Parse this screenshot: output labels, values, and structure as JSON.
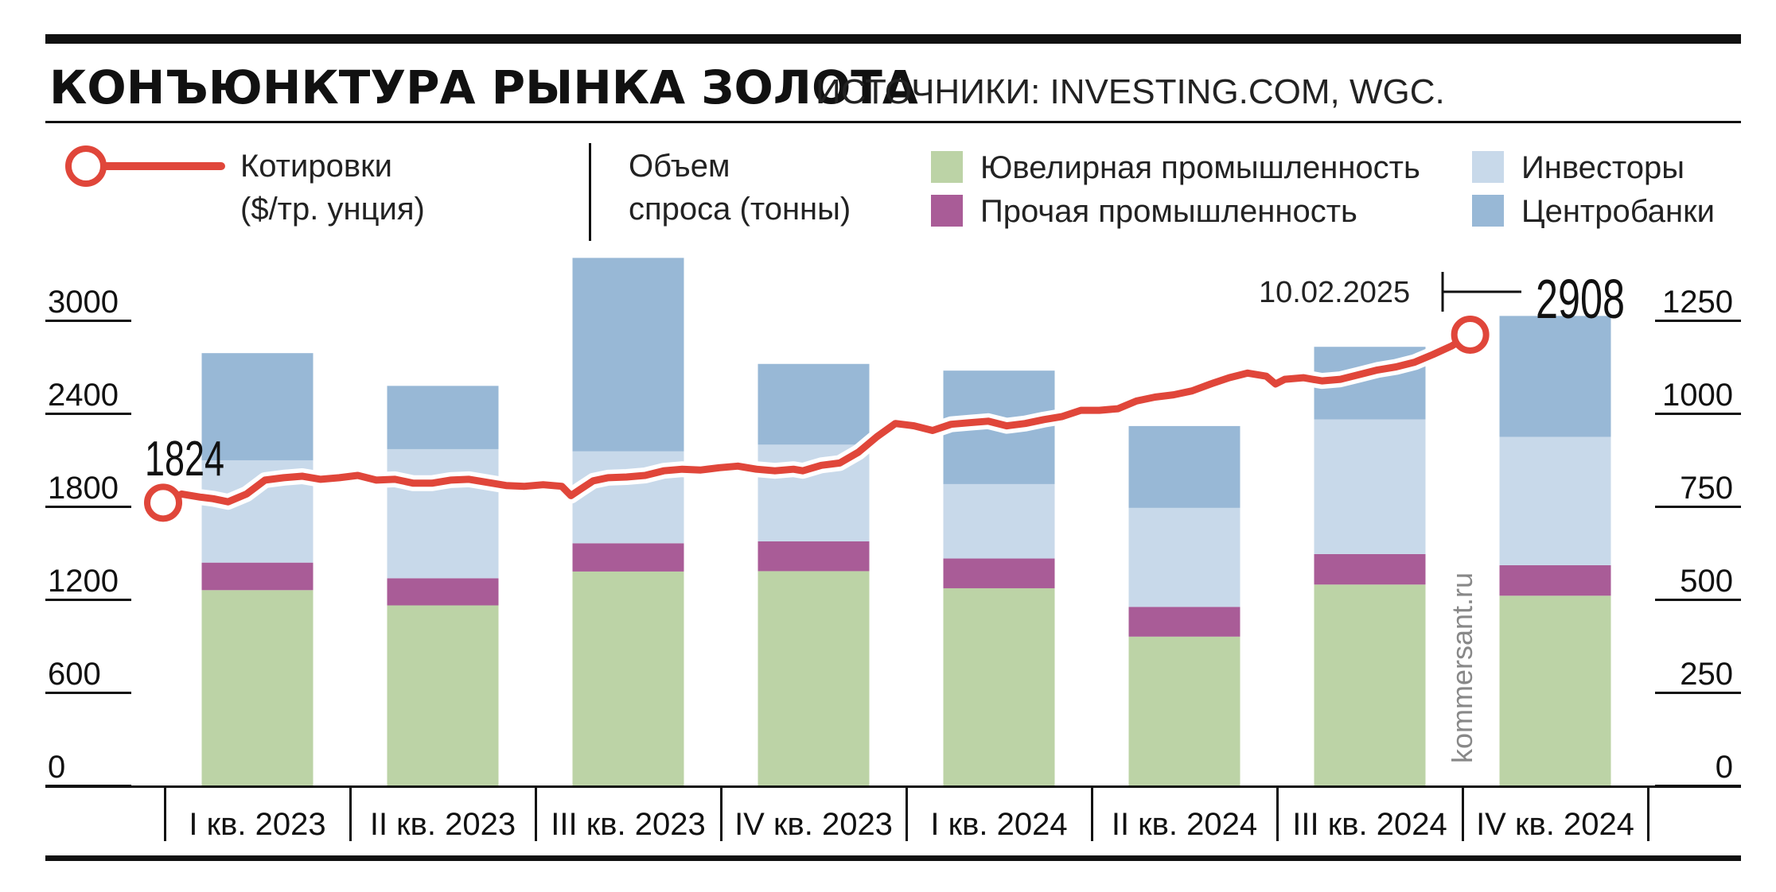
{
  "title": "КОНЪЮНКТУРА РЫНКА ЗОЛОТА",
  "source": "ИСТОЧНИКИ: INVESTING.COM, WGC.",
  "legend": {
    "quotes_line1": "Котировки",
    "quotes_line2": "($/тр. унция)",
    "volume_line1": "Объем",
    "volume_line2": "спроса (тонны)",
    "jewelry": "Ювелирная промышленность",
    "other_industry": "Прочая промышленность",
    "investors": "Инвесторы",
    "central_banks": "Центробанки"
  },
  "watermark": "kommersant.ru",
  "annotations": {
    "start_value": "1824",
    "end_date": "10.02.2025",
    "end_value": "2908"
  },
  "colors": {
    "jewelry": "#bcd3a6",
    "other_industry": "#a95c97",
    "investors": "#c8d9ea",
    "central_banks": "#98b8d6",
    "price_line": "#e0463a",
    "rules": "#111111"
  },
  "chart_data": {
    "type": "bar",
    "title": "КОНЪЮНКТУРА РЫНКА ЗОЛОТА",
    "categories": [
      "I кв. 2023",
      "II кв. 2023",
      "III кв. 2023",
      "IV кв. 2023",
      "I кв. 2024",
      "II кв. 2024",
      "III кв. 2024",
      "IV кв. 2024"
    ],
    "series": [
      {
        "name": "Ювелирная промышленность",
        "values": [
          525,
          484,
          575,
          576,
          530,
          400,
          540,
          510
        ]
      },
      {
        "name": "Прочая промышленность",
        "values": [
          74,
          73,
          76,
          80,
          80,
          80,
          82,
          82
        ]
      },
      {
        "name": "Инвесторы",
        "values": [
          275,
          347,
          247,
          260,
          200,
          266,
          362,
          345
        ]
      },
      {
        "name": "Центробанки",
        "values": [
          288,
          170,
          520,
          217,
          305,
          220,
          195,
          325
        ]
      }
    ],
    "ylim_right": [
      0,
      1250
    ],
    "y_ticks_right": [
      "0",
      "250",
      "500",
      "750",
      "1000",
      "1250"
    ],
    "price_line": {
      "name": "Котировки",
      "ylim_left": [
        0,
        3000
      ],
      "y_ticks_left": [
        "0",
        "600",
        "1200",
        "1800",
        "2400",
        "3000"
      ],
      "start": "1824",
      "end": "2908",
      "end_date": "10.02.2025",
      "points": [
        [
          0.0,
          1824
        ],
        [
          0.1,
          1880
        ],
        [
          0.2,
          1860
        ],
        [
          0.27,
          1850
        ],
        [
          0.35,
          1830
        ],
        [
          0.45,
          1880
        ],
        [
          0.55,
          1970
        ],
        [
          0.65,
          1985
        ],
        [
          0.75,
          1995
        ],
        [
          0.85,
          1975
        ],
        [
          0.95,
          1985
        ],
        [
          1.05,
          2000
        ],
        [
          1.15,
          1970
        ],
        [
          1.25,
          1975
        ],
        [
          1.35,
          1950
        ],
        [
          1.45,
          1950
        ],
        [
          1.55,
          1970
        ],
        [
          1.65,
          1975
        ],
        [
          1.75,
          1955
        ],
        [
          1.85,
          1935
        ],
        [
          1.95,
          1930
        ],
        [
          2.05,
          1940
        ],
        [
          2.15,
          1930
        ],
        [
          2.2,
          1870
        ],
        [
          2.25,
          1910
        ],
        [
          2.32,
          1965
        ],
        [
          2.4,
          1985
        ],
        [
          2.5,
          1990
        ],
        [
          2.6,
          2000
        ],
        [
          2.7,
          2030
        ],
        [
          2.8,
          2040
        ],
        [
          2.9,
          2035
        ],
        [
          3.0,
          2050
        ],
        [
          3.1,
          2060
        ],
        [
          3.2,
          2040
        ],
        [
          3.3,
          2030
        ],
        [
          3.4,
          2040
        ],
        [
          3.45,
          2030
        ],
        [
          3.55,
          2065
        ],
        [
          3.65,
          2080
        ],
        [
          3.75,
          2150
        ],
        [
          3.85,
          2250
        ],
        [
          3.95,
          2335
        ],
        [
          4.05,
          2320
        ],
        [
          4.15,
          2290
        ],
        [
          4.25,
          2330
        ],
        [
          4.35,
          2340
        ],
        [
          4.45,
          2350
        ],
        [
          4.55,
          2320
        ],
        [
          4.65,
          2335
        ],
        [
          4.75,
          2360
        ],
        [
          4.85,
          2380
        ],
        [
          4.95,
          2420
        ],
        [
          5.05,
          2420
        ],
        [
          5.15,
          2430
        ],
        [
          5.25,
          2480
        ],
        [
          5.35,
          2505
        ],
        [
          5.45,
          2520
        ],
        [
          5.55,
          2545
        ],
        [
          5.65,
          2590
        ],
        [
          5.75,
          2630
        ],
        [
          5.85,
          2660
        ],
        [
          5.95,
          2640
        ],
        [
          6.0,
          2590
        ],
        [
          6.05,
          2620
        ],
        [
          6.15,
          2630
        ],
        [
          6.25,
          2610
        ],
        [
          6.35,
          2620
        ],
        [
          6.45,
          2650
        ],
        [
          6.55,
          2680
        ],
        [
          6.65,
          2700
        ],
        [
          6.75,
          2730
        ],
        [
          6.85,
          2780
        ],
        [
          6.95,
          2835
        ],
        [
          7.05,
          2908
        ]
      ]
    }
  }
}
